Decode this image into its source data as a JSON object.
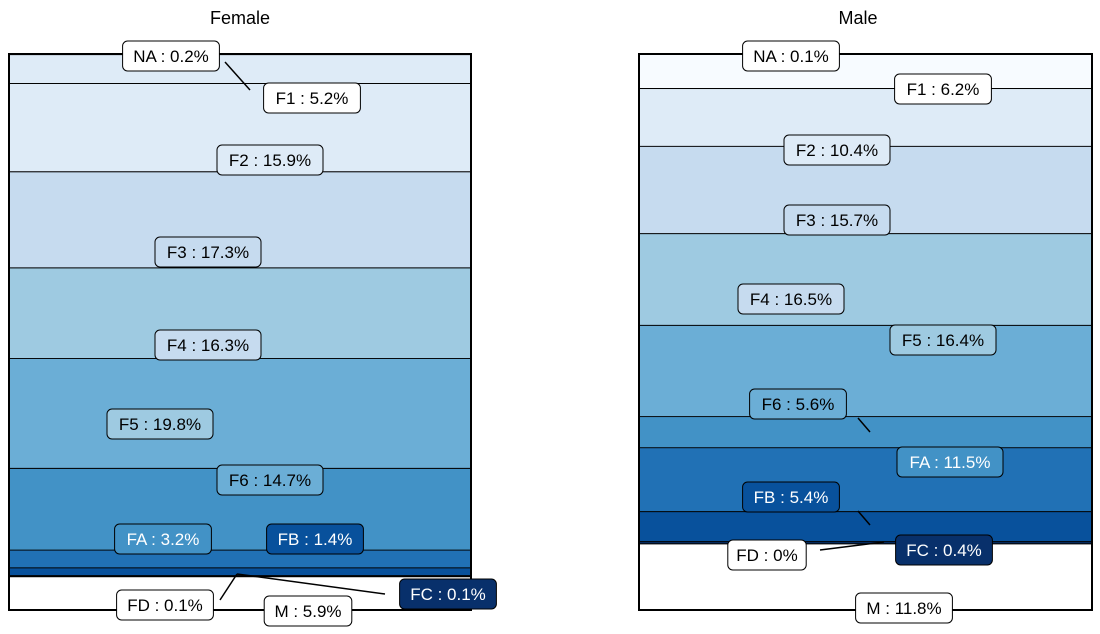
{
  "chart_data": [
    {
      "type": "stacked-bar",
      "title": "Female",
      "segments": [
        {
          "label": "NA",
          "value": 0.2,
          "color": "#f7fbff",
          "text": "NA : 0.2%"
        },
        {
          "label": "F1",
          "value": 5.2,
          "color": "#deebf7",
          "text": "F1 : 5.2%"
        },
        {
          "label": "F2",
          "value": 15.9,
          "color": "#deebf7",
          "text": "F2 : 15.9%"
        },
        {
          "label": "F3",
          "value": 17.3,
          "color": "#c6dbef",
          "text": "F3 : 17.3%"
        },
        {
          "label": "F4",
          "value": 16.3,
          "color": "#9ecae1",
          "text": "F4 : 16.3%"
        },
        {
          "label": "F5",
          "value": 19.8,
          "color": "#6baed6",
          "text": "F5 : 19.8%"
        },
        {
          "label": "F6",
          "value": 14.7,
          "color": "#4292c6",
          "text": "F6 : 14.7%"
        },
        {
          "label": "FA",
          "value": 3.2,
          "color": "#2171b5",
          "text": "FA : 3.2%"
        },
        {
          "label": "FB",
          "value": 1.4,
          "color": "#08519c",
          "text": "FB : 1.4%"
        },
        {
          "label": "FC",
          "value": 0.1,
          "color": "#08306b",
          "text": "FC : 0.1%"
        },
        {
          "label": "FD",
          "value": 0.1,
          "color": "#ffffff",
          "text": "FD : 0.1%"
        },
        {
          "label": "M",
          "value": 5.9,
          "color": "#ffffff",
          "text": "M : 5.9%"
        }
      ]
    },
    {
      "type": "stacked-bar",
      "title": "Male",
      "segments": [
        {
          "label": "NA",
          "value": 0.1,
          "color": "#f7fbff",
          "text": "NA : 0.1%"
        },
        {
          "label": "F1",
          "value": 6.2,
          "color": "#f7fbff",
          "text": "F1 : 6.2%"
        },
        {
          "label": "F2",
          "value": 10.4,
          "color": "#deebf7",
          "text": "F2 : 10.4%"
        },
        {
          "label": "F3",
          "value": 15.7,
          "color": "#c6dbef",
          "text": "F3 : 15.7%"
        },
        {
          "label": "F4",
          "value": 16.5,
          "color": "#9ecae1",
          "text": "F4 : 16.5%"
        },
        {
          "label": "F5",
          "value": 16.4,
          "color": "#6baed6",
          "text": "F5 : 16.4%"
        },
        {
          "label": "F6",
          "value": 5.6,
          "color": "#4292c6",
          "text": "F6 : 5.6%"
        },
        {
          "label": "FA",
          "value": 11.5,
          "color": "#2171b5",
          "text": "FA : 11.5%"
        },
        {
          "label": "FB",
          "value": 5.4,
          "color": "#08519c",
          "text": "FB : 5.4%"
        },
        {
          "label": "FC",
          "value": 0.4,
          "color": "#08306b",
          "text": "FC : 0.4%"
        },
        {
          "label": "FD",
          "value": 0.0,
          "color": "#ffffff",
          "text": "FD : 0%"
        },
        {
          "label": "M",
          "value": 11.8,
          "color": "#ffffff",
          "text": "M : 11.8%"
        }
      ]
    }
  ]
}
